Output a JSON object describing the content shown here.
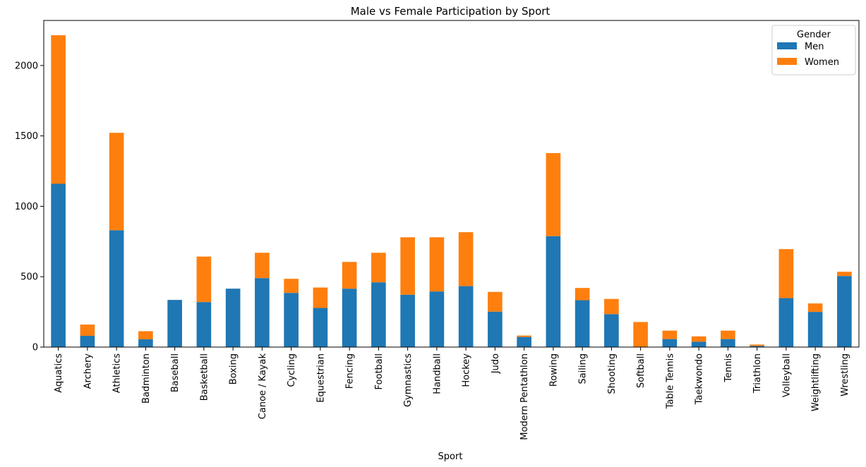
{
  "chart_data": {
    "type": "bar",
    "stacked": true,
    "title": "Male vs Female Participation by Sport",
    "xlabel": "Sport",
    "ylabel": "",
    "ylim": [
      0,
      2320
    ],
    "yticks": [
      0,
      500,
      1000,
      1500,
      2000
    ],
    "categories": [
      "Aquatics",
      "Archery",
      "Athletics",
      "Badminton",
      "Baseball",
      "Basketball",
      "Boxing",
      "Canoe / Kayak",
      "Cycling",
      "Equestrian",
      "Fencing",
      "Football",
      "Gymnastics",
      "Handball",
      "Hockey",
      "Judo",
      "Modern Pentathlon",
      "Rowing",
      "Sailing",
      "Shooting",
      "Softball",
      "Table Tennis",
      "Taekwondo",
      "Tennis",
      "Triathlon",
      "Volleyball",
      "Weightlifting",
      "Wrestling"
    ],
    "series": [
      {
        "name": "Men",
        "color": "#1f77b4",
        "values": [
          1160,
          80,
          830,
          55,
          335,
          320,
          415,
          490,
          385,
          278,
          415,
          460,
          372,
          395,
          433,
          252,
          72,
          788,
          333,
          234,
          0,
          57,
          38,
          57,
          8,
          348,
          250,
          505
        ]
      },
      {
        "name": "Women",
        "color": "#ff7f0e",
        "values": [
          1055,
          80,
          692,
          58,
          0,
          323,
          0,
          180,
          100,
          145,
          190,
          210,
          408,
          385,
          383,
          140,
          10,
          590,
          87,
          108,
          178,
          60,
          38,
          60,
          10,
          348,
          60,
          30
        ]
      }
    ],
    "legend": {
      "title": "Gender",
      "placement": "top-right"
    },
    "grid": false
  }
}
